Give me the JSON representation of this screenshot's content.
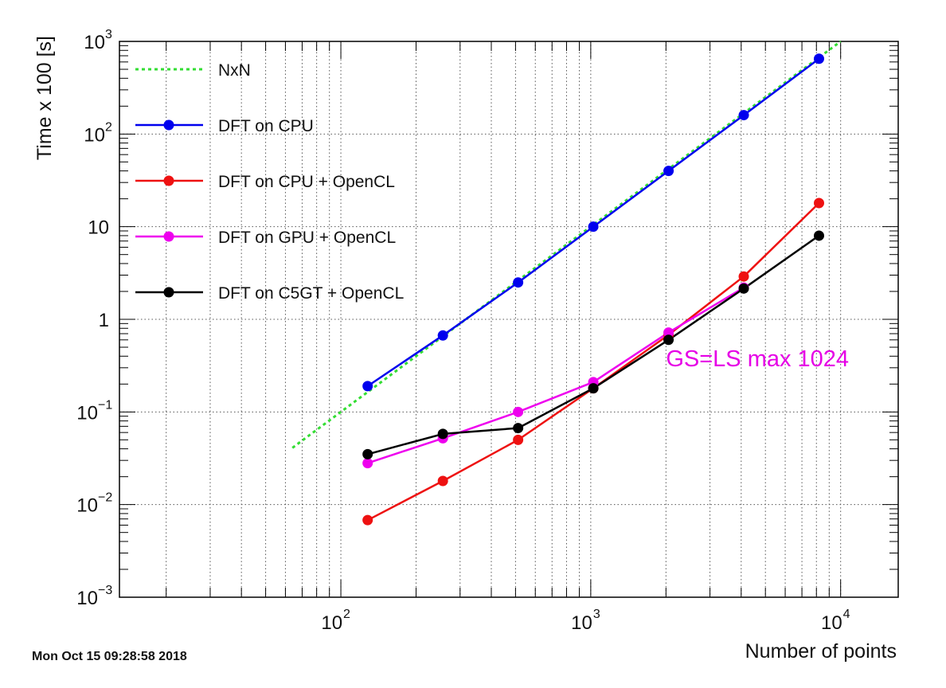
{
  "chart_data": {
    "type": "line",
    "x_scale": "log",
    "y_scale": "log",
    "xlim": [
      13,
      17000
    ],
    "ylim": [
      0.001,
      1000
    ],
    "grid": true,
    "legend_position": "top-left",
    "xlabel": "Number of points",
    "ylabel": "Time x 100 [s]",
    "x_ticks": [
      {
        "value": 100,
        "base": "10",
        "exp": "2"
      },
      {
        "value": 1000,
        "base": "10",
        "exp": "3"
      },
      {
        "value": 10000,
        "base": "10",
        "exp": "4"
      }
    ],
    "y_ticks": [
      {
        "value": 0.001,
        "base": "10",
        "exp": "−3",
        "label": ""
      },
      {
        "value": 0.01,
        "base": "10",
        "exp": "−2",
        "label": ""
      },
      {
        "value": 0.1,
        "base": "10",
        "exp": "−1",
        "label": ""
      },
      {
        "value": 1,
        "base": "",
        "exp": "",
        "label": "1"
      },
      {
        "value": 10,
        "base": "",
        "exp": "",
        "label": "10"
      },
      {
        "value": 100,
        "base": "10",
        "exp": "2",
        "label": ""
      },
      {
        "value": 1000,
        "base": "10",
        "exp": "3",
        "label": ""
      }
    ],
    "annotation": {
      "text": "GS=LS max 1024",
      "x": 2000,
      "y": 0.38,
      "color": "#e600e6"
    },
    "series": [
      {
        "name": "NxN",
        "color": "#33dd33",
        "dashed": true,
        "markers": false,
        "x": [
          64,
          10000
        ],
        "y": [
          0.041,
          1000
        ]
      },
      {
        "name": "DFT on CPU",
        "color": "#0000ee",
        "dashed": false,
        "markers": true,
        "x": [
          128,
          256,
          512,
          1024,
          2048,
          4096,
          8192
        ],
        "y": [
          0.19,
          0.67,
          2.5,
          10,
          40,
          160,
          650
        ]
      },
      {
        "name": "DFT on CPU + OpenCL",
        "color": "#ee1111",
        "dashed": false,
        "markers": true,
        "x": [
          128,
          256,
          512,
          1024,
          2048,
          4096,
          8192
        ],
        "y": [
          0.0068,
          0.018,
          0.05,
          0.18,
          0.68,
          2.9,
          18
        ]
      },
      {
        "name": "DFT on GPU + OpenCL",
        "color": "#ee00ee",
        "dashed": false,
        "markers": true,
        "x": [
          128,
          256,
          512,
          1024,
          2048,
          4096
        ],
        "y": [
          0.028,
          0.052,
          0.1,
          0.21,
          0.72,
          2.2
        ]
      },
      {
        "name": "DFT on C5GT + OpenCL",
        "color": "#000000",
        "dashed": false,
        "markers": true,
        "x": [
          128,
          256,
          512,
          1024,
          2048,
          4096,
          8192
        ],
        "y": [
          0.035,
          0.058,
          0.067,
          0.18,
          0.6,
          2.15,
          8
        ]
      }
    ]
  },
  "footer": {
    "datestamp": "Mon Oct 15 09:28:58 2018"
  }
}
